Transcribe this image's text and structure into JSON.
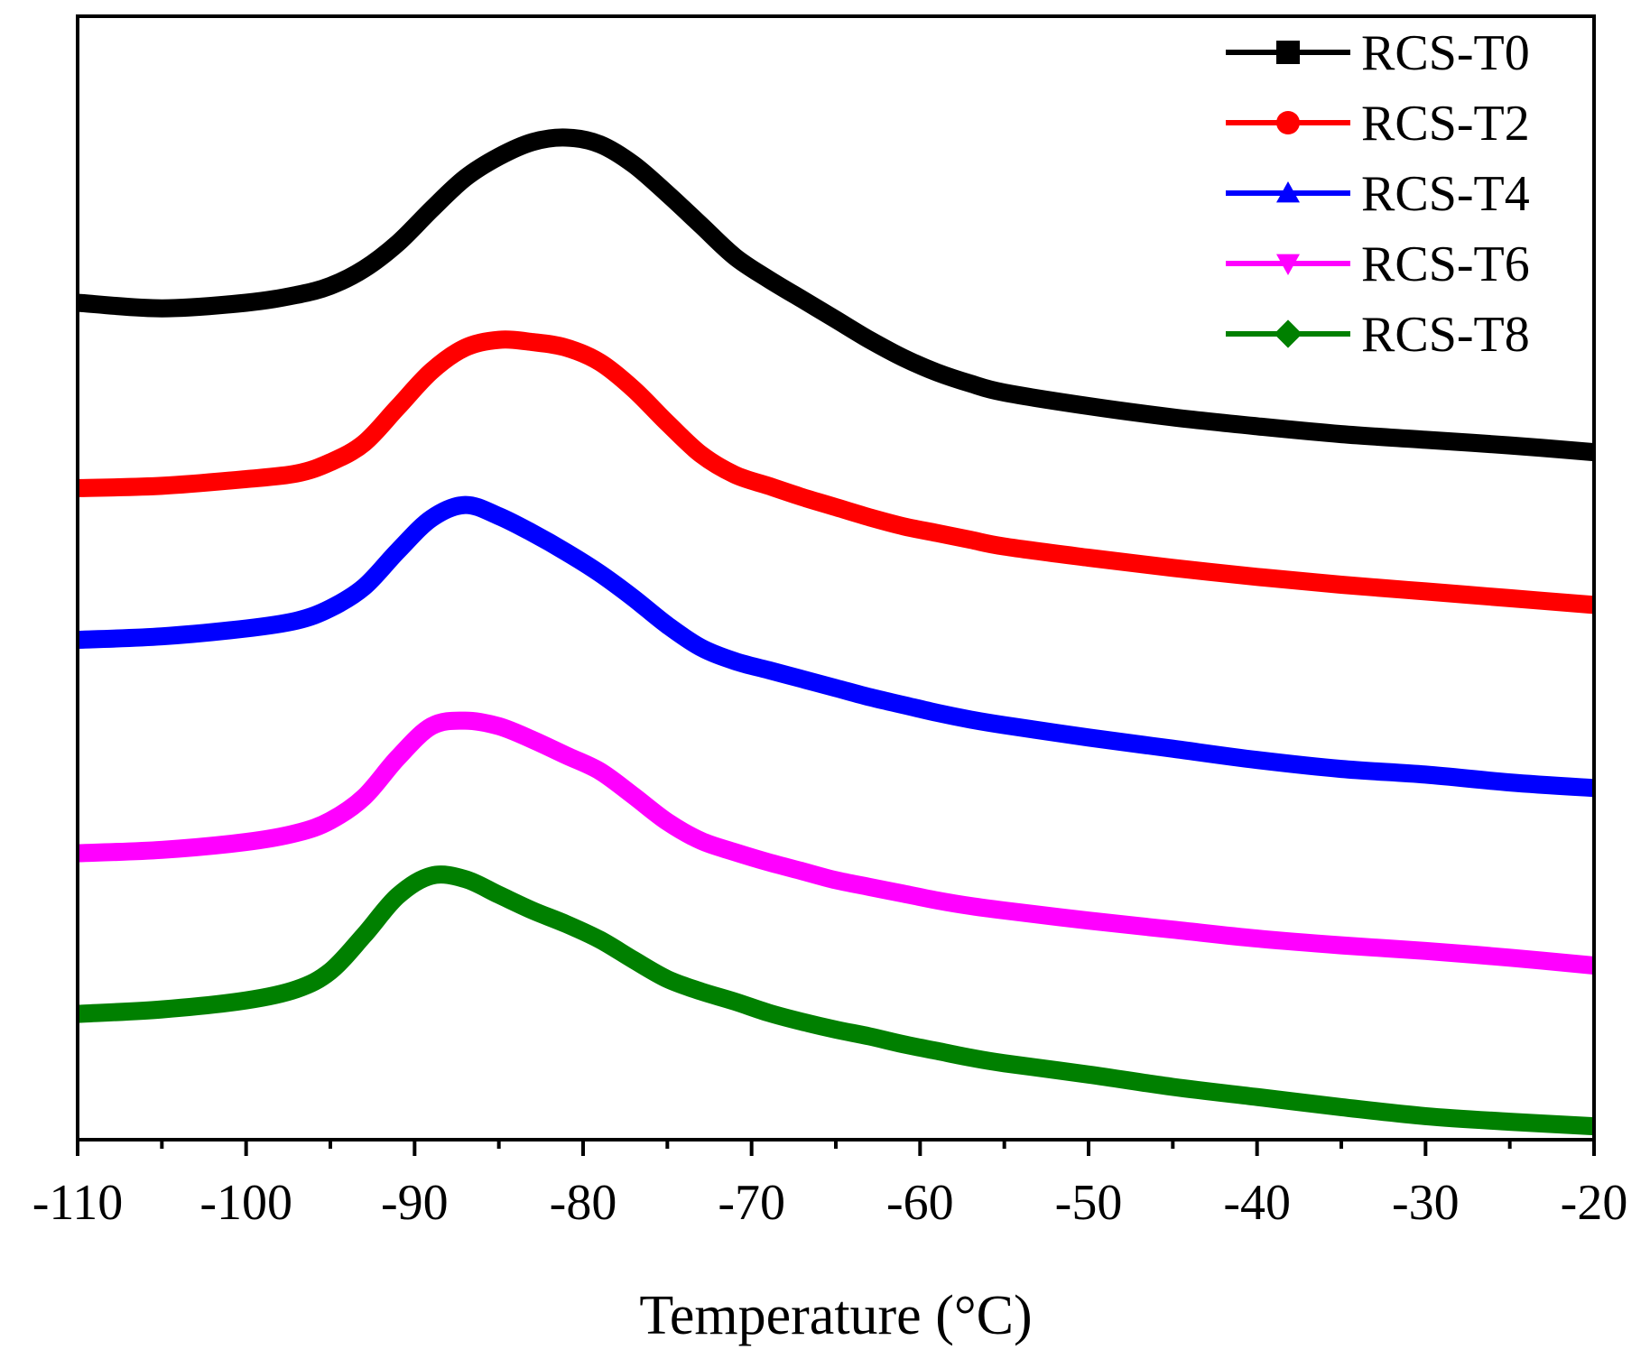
{
  "chart_data": {
    "type": "line",
    "title": "",
    "xlabel": "Temperature (°C)",
    "ylabel": "",
    "xlim": [
      -110,
      -20
    ],
    "ylim": [
      0,
      100
    ],
    "y_ticks_shown": false,
    "xticks": [
      -110,
      -100,
      -90,
      -80,
      -70,
      -60,
      -50,
      -40,
      -30,
      -20
    ],
    "xtick_labels": [
      "-110",
      "-100",
      "-90",
      "-80",
      "-70",
      "-60",
      "-50",
      "-40",
      "-30",
      "-20"
    ],
    "legend_position": "top-right",
    "x": [
      -110,
      -105,
      -100,
      -97,
      -95,
      -93,
      -91,
      -89,
      -87,
      -85,
      -83,
      -81,
      -79,
      -77,
      -75,
      -73,
      -71,
      -69,
      -67,
      -65,
      -63,
      -61,
      -59,
      -57,
      -55,
      -50,
      -45,
      -40,
      -35,
      -30,
      -25,
      -20
    ],
    "series": [
      {
        "name": "RCS-T0",
        "color": "#000000",
        "marker": "square",
        "values": [
          74.5,
          74.0,
          74.5,
          75.2,
          76.0,
          77.5,
          79.8,
          82.8,
          85.6,
          87.5,
          88.8,
          89.2,
          88.6,
          86.8,
          84.2,
          81.4,
          78.6,
          76.6,
          74.8,
          73.0,
          71.2,
          69.6,
          68.3,
          67.3,
          66.5,
          65.3,
          64.3,
          63.5,
          62.8,
          62.3,
          61.8,
          61.2
        ]
      },
      {
        "name": "RCS-T2",
        "color": "#ff0000",
        "marker": "circle",
        "values": [
          58.0,
          58.2,
          58.8,
          59.3,
          60.3,
          62.0,
          65.2,
          68.4,
          70.5,
          71.2,
          71.0,
          70.5,
          69.2,
          66.8,
          63.8,
          61.0,
          59.2,
          58.2,
          57.2,
          56.3,
          55.4,
          54.6,
          54.0,
          53.4,
          52.8,
          51.8,
          50.9,
          50.1,
          49.4,
          48.8,
          48.2,
          47.6
        ]
      },
      {
        "name": "RCS-T4",
        "color": "#0000ff",
        "marker": "triangle-up",
        "values": [
          44.5,
          44.8,
          45.5,
          46.2,
          47.3,
          49.2,
          52.4,
          55.3,
          56.5,
          55.5,
          54.0,
          52.3,
          50.4,
          48.2,
          45.8,
          43.8,
          42.6,
          41.8,
          41.0,
          40.2,
          39.4,
          38.7,
          38.0,
          37.4,
          36.9,
          35.8,
          34.8,
          33.8,
          33.0,
          32.5,
          31.8,
          31.3
        ]
      },
      {
        "name": "RCS-T6",
        "color": "#ff00ff",
        "marker": "triangle-down",
        "values": [
          25.5,
          25.8,
          26.5,
          27.3,
          28.4,
          30.5,
          34.0,
          36.8,
          37.3,
          36.8,
          35.6,
          34.2,
          32.8,
          30.6,
          28.3,
          26.6,
          25.6,
          24.7,
          23.9,
          23.1,
          22.5,
          21.9,
          21.3,
          20.8,
          20.4,
          19.5,
          18.7,
          17.9,
          17.3,
          16.8,
          16.2,
          15.5
        ]
      },
      {
        "name": "RCS-T8",
        "color": "#008000",
        "marker": "diamond",
        "values": [
          11.2,
          11.6,
          12.4,
          13.4,
          15.0,
          18.2,
          21.7,
          23.5,
          23.2,
          21.8,
          20.4,
          19.2,
          17.8,
          16.0,
          14.3,
          13.2,
          12.3,
          11.3,
          10.5,
          9.8,
          9.2,
          8.5,
          7.9,
          7.3,
          6.8,
          5.8,
          4.7,
          3.8,
          2.9,
          2.1,
          1.6,
          1.2
        ]
      }
    ]
  }
}
